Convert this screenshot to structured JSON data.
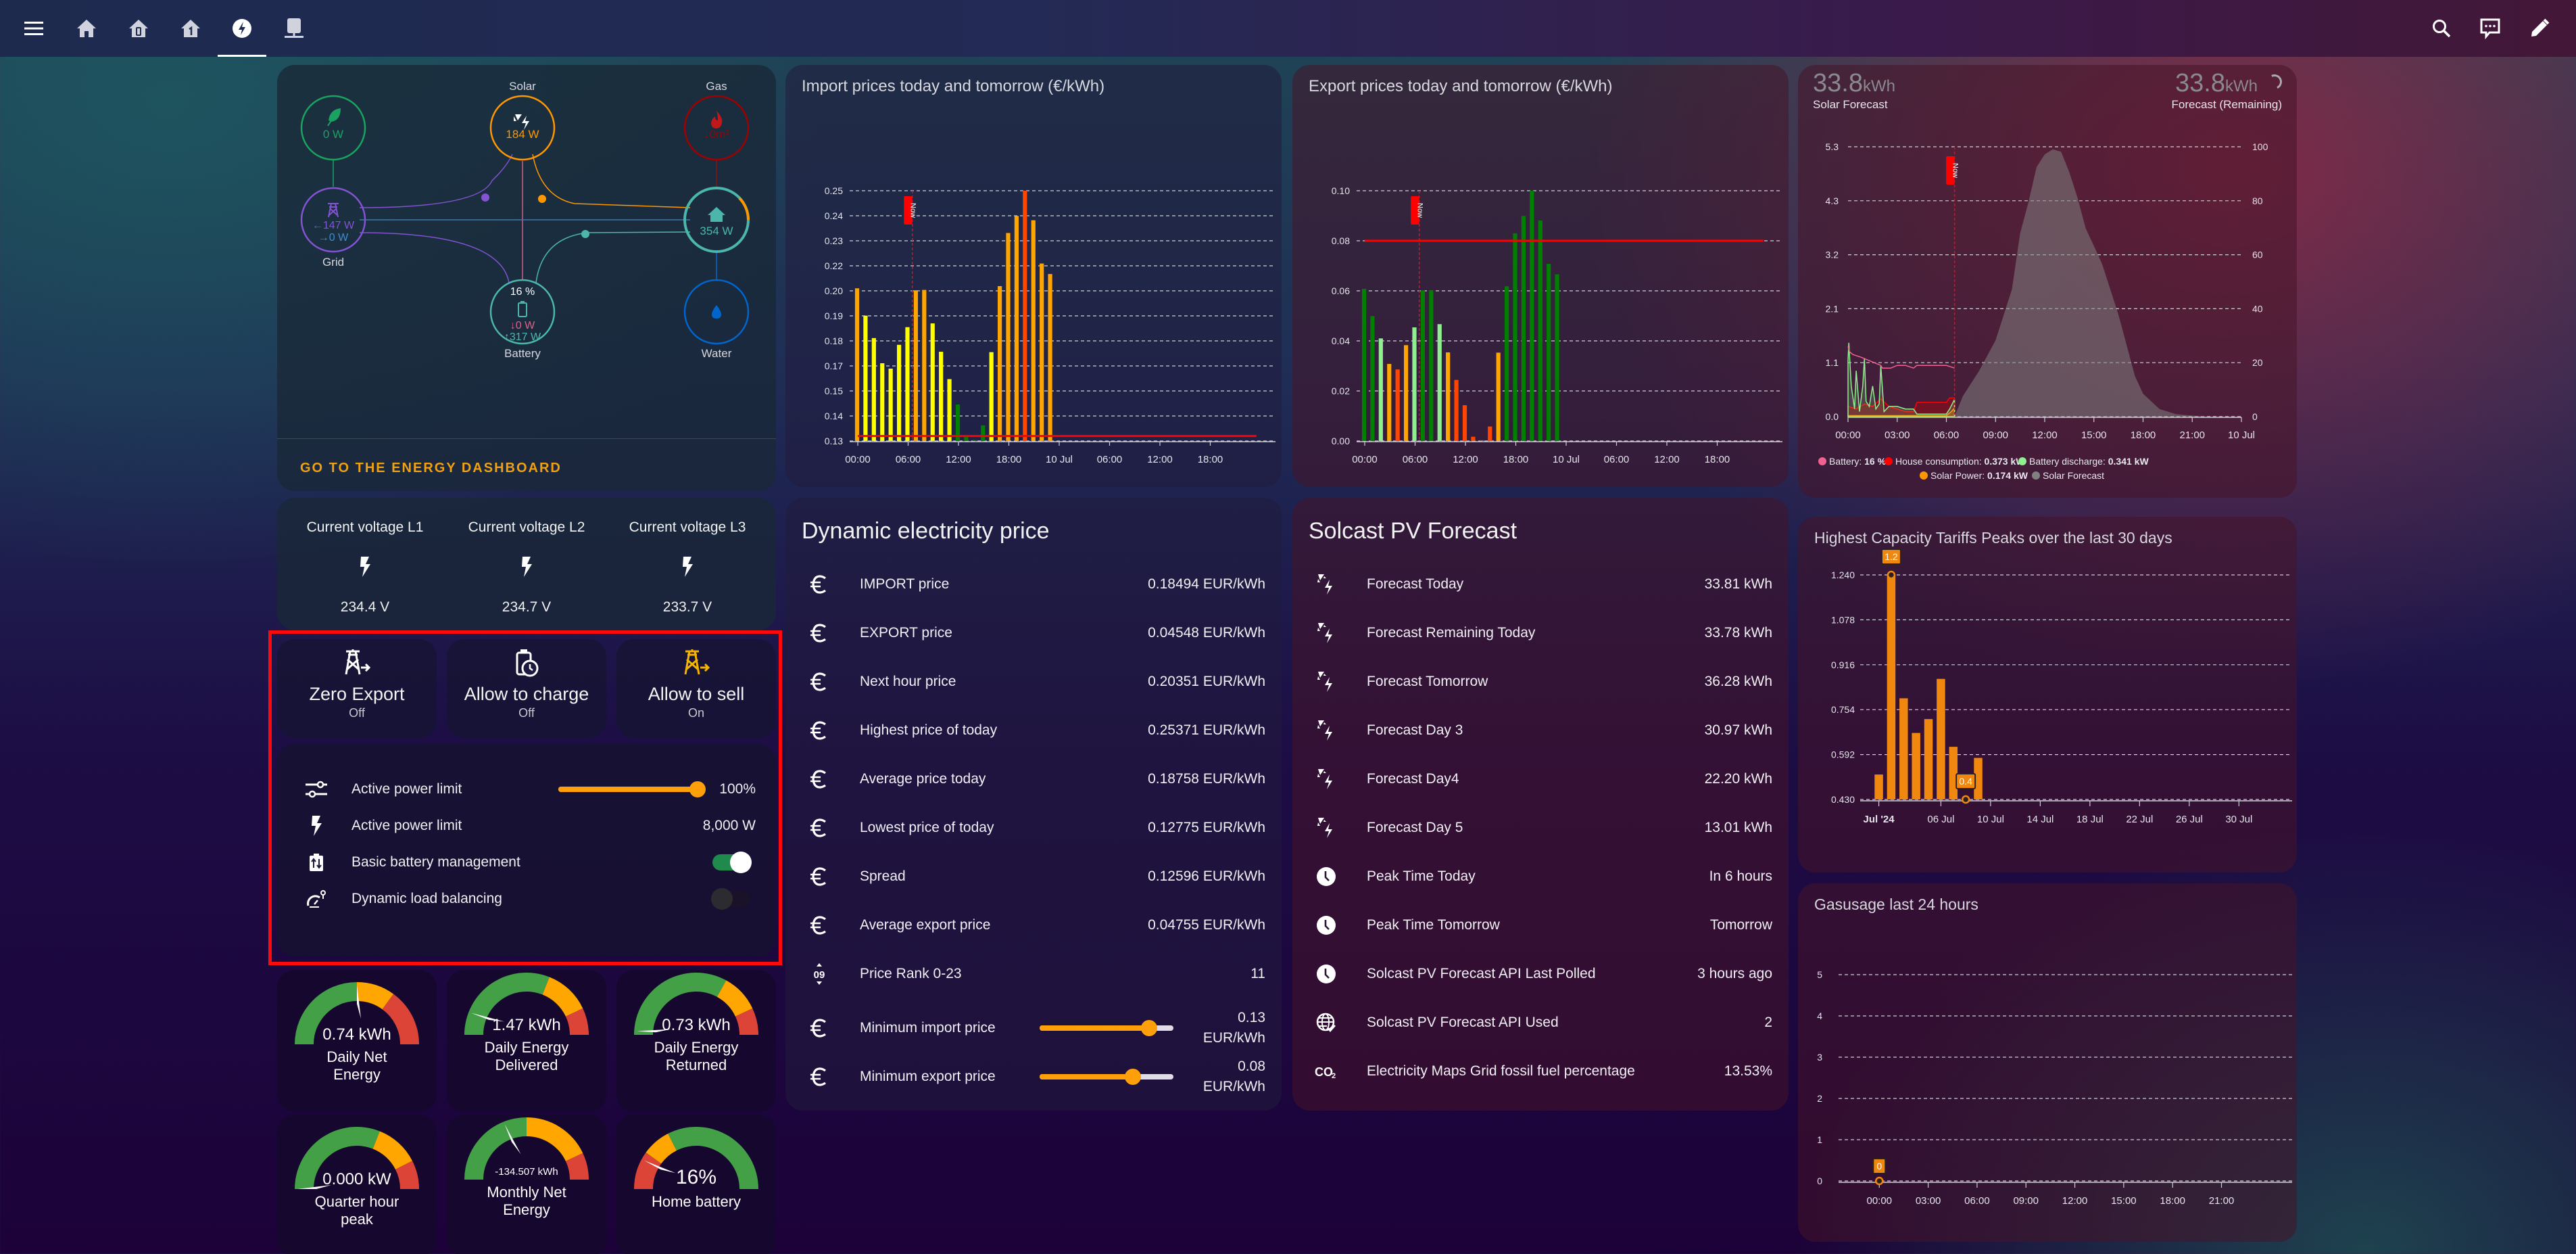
{
  "topbar": {
    "nav_icons": [
      "menu-icon",
      "home-icon",
      "home-floor-0-icon",
      "home-floor-1-icon",
      "lightning-bolt-circle-icon",
      "server-network-icon"
    ],
    "active_tab": "lightning-bolt-circle-icon",
    "right_icons": [
      "search-icon",
      "assist-chat-icon",
      "edit-pencil-icon"
    ]
  },
  "energy_flow": {
    "low_carbon": {
      "value": "0 W",
      "color": "#1aa260"
    },
    "solar": {
      "label": "Solar",
      "value": "184 W",
      "color": "#ff9800"
    },
    "gas": {
      "label": "Gas",
      "value": "↓0m³",
      "color": "#8e0e0e"
    },
    "grid": {
      "label": "Grid",
      "import": "←147 W",
      "export": "→0 W",
      "color": "#8353d1"
    },
    "home": {
      "value": "354 W",
      "color": "#4db6ac"
    },
    "battery": {
      "label": "Battery",
      "soc": "16 %",
      "in": "↓0 W",
      "out": "↑317 W",
      "color": "#4db6ac"
    },
    "water": {
      "label": "Water",
      "color": "#0066cc"
    },
    "footer_link": "GO TO THE ENERGY DASHBOARD"
  },
  "voltages": [
    {
      "label": "Current voltage L1",
      "value": "234.4 V"
    },
    {
      "label": "Current voltage L2",
      "value": "234.7 V"
    },
    {
      "label": "Current voltage L3",
      "value": "233.7 V"
    }
  ],
  "toggle_buttons": [
    {
      "name": "Zero Export",
      "state": "Off",
      "icon": "transmission-tower-export-icon",
      "color": "#ffffff"
    },
    {
      "name": "Allow to charge",
      "state": "Off",
      "icon": "battery-clock-icon",
      "color": "#ffffff"
    },
    {
      "name": "Allow to sell",
      "state": "On",
      "icon": "transmission-tower-export-icon",
      "color": "#f4b400"
    }
  ],
  "controls": {
    "active_power_limit_pct": {
      "label": "Active power limit",
      "value": "100%",
      "fraction": 1.0
    },
    "active_power_limit_w": {
      "label": "Active power limit",
      "value": "8,000 W"
    },
    "basic_battery_mgmt": {
      "label": "Basic battery management",
      "on": true
    },
    "dynamic_load_balancing": {
      "label": "Dynamic load balancing",
      "on": false
    }
  },
  "gauges": [
    {
      "value": "0.74 kWh",
      "label": "Daily Net Energy"
    },
    {
      "value": "1.47 kWh",
      "label": "Daily Energy Delivered"
    },
    {
      "value": "0.73 kWh",
      "label": "Daily Energy Returned"
    },
    {
      "value": "0.000 kW",
      "label": "Quarter hour peak"
    },
    {
      "value": "-134.507 kWh",
      "label": "Monthly Net Energy"
    },
    {
      "value": "16%",
      "label": "Home battery"
    }
  ],
  "dynamic_price": {
    "title": "Dynamic electricity price",
    "rows": [
      {
        "icon": "euro-icon",
        "label": "IMPORT price",
        "value": "0.18494 EUR/kWh"
      },
      {
        "icon": "euro-icon",
        "label": "EXPORT price",
        "value": "0.04548 EUR/kWh"
      },
      {
        "icon": "euro-icon",
        "label": "Next hour price",
        "value": "0.20351 EUR/kWh"
      },
      {
        "icon": "euro-icon",
        "label": "Highest price of today",
        "value": "0.25371 EUR/kWh"
      },
      {
        "icon": "euro-icon",
        "label": "Average price today",
        "value": "0.18758 EUR/kWh"
      },
      {
        "icon": "euro-icon",
        "label": "Lowest price of today",
        "value": "0.12775 EUR/kWh"
      },
      {
        "icon": "euro-icon",
        "label": "Spread",
        "value": "0.12596 EUR/kWh"
      },
      {
        "icon": "euro-icon",
        "label": "Average export price",
        "value": "0.04755 EUR/kWh"
      },
      {
        "icon": "numeric-icon",
        "label": "Price Rank 0-23",
        "value": "11"
      }
    ],
    "sliders": [
      {
        "label": "Minimum import price",
        "value": "0.13",
        "unit": "EUR/kWh",
        "fraction": 0.82
      },
      {
        "label": "Minimum export price",
        "value": "0.08",
        "unit": "EUR/kWh",
        "fraction": 0.7
      }
    ]
  },
  "solcast": {
    "title": "Solcast PV Forecast",
    "rows": [
      {
        "icon": "solar-power-icon",
        "label": "Forecast Today",
        "value": "33.81 kWh"
      },
      {
        "icon": "solar-power-icon",
        "label": "Forecast Remaining Today",
        "value": "33.78 kWh"
      },
      {
        "icon": "solar-power-icon",
        "label": "Forecast Tomorrow",
        "value": "36.28 kWh"
      },
      {
        "icon": "solar-power-icon",
        "label": "Forecast Day 3",
        "value": "30.97 kWh"
      },
      {
        "icon": "solar-power-icon",
        "label": "Forecast Day4",
        "value": "22.20 kWh"
      },
      {
        "icon": "solar-power-icon",
        "label": "Forecast Day 5",
        "value": "13.01 kWh"
      },
      {
        "icon": "clock-icon",
        "label": "Peak Time Today",
        "value": "In 6 hours"
      },
      {
        "icon": "clock-icon",
        "label": "Peak Time Tomorrow",
        "value": "Tomorrow"
      },
      {
        "icon": "clock-icon",
        "label": "Solcast PV Forecast API Last Polled",
        "value": "3 hours ago"
      },
      {
        "icon": "web-check-icon",
        "label": "Solcast PV Forecast API Used",
        "value": "2"
      },
      {
        "icon": "co2-icon",
        "label": "Electricity Maps Grid fossil fuel percentage",
        "value": "13.53%"
      }
    ]
  },
  "solar_header": {
    "left_value": "33.8",
    "left_unit": "kWh",
    "left_label": "Solar Forecast",
    "right_value": "33.8",
    "right_unit": "kWh",
    "right_label": "Forecast (Remaining)"
  },
  "now_label": "Now",
  "chart_data": [
    {
      "id": "import",
      "type": "bar",
      "title": "Import prices today and tomorrow (€/kWh)",
      "x_ticks": [
        "00:00",
        "06:00",
        "12:00",
        "18:00",
        "10 Jul",
        "06:00",
        "12:00",
        "18:00"
      ],
      "y_ticks": [
        "0.13",
        "0.14",
        "0.15",
        "0.17",
        "0.18",
        "0.19",
        "0.20",
        "0.22",
        "0.23",
        "0.24",
        "0.25"
      ],
      "ylim": [
        0.1275,
        0.2537
      ],
      "x_hours_range": [
        0,
        48
      ],
      "now_hour": 6.5,
      "threshold": 0.13,
      "threshold_color": "#ff0000",
      "values": [
        0.2045,
        0.1907,
        0.1794,
        0.1667,
        0.164,
        0.176,
        0.1849,
        0.2035,
        0.2037,
        0.1868,
        0.1725,
        0.1587,
        0.1459,
        0.13,
        0.128,
        0.1354,
        0.1723,
        0.2056,
        0.2324,
        0.241,
        0.2537,
        0.2388,
        0.217,
        0.2117
      ],
      "colors": [
        "#ffa500",
        "#ffff00",
        "#ffff00",
        "#ffff00",
        "#ffff00",
        "#ffff00",
        "#ffff00",
        "#ffa500",
        "#ffa500",
        "#ffff00",
        "#ffff00",
        "#ffff00",
        "#008000",
        "#008000",
        "#008000",
        "#008000",
        "#ffff00",
        "#ffa500",
        "#ffa500",
        "#ffa500",
        "#ff4500",
        "#ffa500",
        "#ffa500",
        "#ffa500"
      ]
    },
    {
      "id": "export",
      "type": "bar",
      "title": "Export prices today and tomorrow (€/kWh)",
      "x_ticks": [
        "00:00",
        "06:00",
        "12:00",
        "18:00",
        "10 Jul",
        "06:00",
        "12:00",
        "18:00"
      ],
      "y_ticks": [
        "0.00",
        "0.02",
        "0.04",
        "0.06",
        "0.08",
        "0.10"
      ],
      "ylim": [
        0,
        0.1
      ],
      "x_hours_range": [
        0,
        48
      ],
      "now_hour": 6.5,
      "threshold": 0.08,
      "threshold_color": "#ff0000",
      "values": [
        0.0608,
        0.0499,
        0.041,
        0.0308,
        0.0286,
        0.0383,
        0.0454,
        0.0602,
        0.0602,
        0.0467,
        0.0354,
        0.0244,
        0.0143,
        0.0017,
        0.0003,
        0.0058,
        0.0353,
        0.0618,
        0.083,
        0.0899,
        0.1,
        0.0881,
        0.0708,
        0.0666
      ],
      "colors": [
        "#008000",
        "#008000",
        "#90ee90",
        "#ffa500",
        "#ff4500",
        "#ffa500",
        "#90ee90",
        "#008000",
        "#008000",
        "#90ee90",
        "#ffa500",
        "#ff4500",
        "#ff4500",
        "#ff4500",
        "#ff4500",
        "#ff4500",
        "#ffa500",
        "#008000",
        "#008000",
        "#008000",
        "#008000",
        "#008000",
        "#008000",
        "#008000"
      ]
    },
    {
      "id": "solar",
      "type": "area",
      "x_ticks": [
        "00:00",
        "03:00",
        "06:00",
        "09:00",
        "12:00",
        "15:00",
        "18:00",
        "21:00",
        "10 Jul"
      ],
      "y_left_ticks": [
        "0.0",
        "1.1",
        "2.1",
        "3.2",
        "4.3",
        "5.3"
      ],
      "y_right_ticks": [
        "0",
        "20",
        "40",
        "60",
        "80",
        "100"
      ],
      "ylim_left": [
        0,
        5.3
      ],
      "ylim_right": [
        0,
        100
      ],
      "now_hour": 6.5,
      "series": [
        {
          "name": "Battery",
          "legend_value": "16 %",
          "color": "#f06292",
          "axis": "right",
          "x": [
            0,
            0.1,
            0.3,
            0.8,
            1.2,
            1.6,
            2.0,
            2.1,
            2.6,
            3.0,
            3.5,
            4.0,
            4.2,
            5.0,
            6.0,
            6.5
          ],
          "y": [
            26,
            24,
            23,
            22,
            21,
            20,
            19,
            18,
            18,
            19,
            19,
            18,
            19,
            19,
            19,
            18
          ]
        },
        {
          "name": "House consumption",
          "legend_value": "0.373 kW",
          "color": "#ff0000",
          "axis": "left",
          "x": [
            0,
            0.5,
            1.0,
            1.5,
            2.0,
            2.5,
            3.0,
            3.5,
            4.0,
            4.2,
            5.0,
            6.0,
            6.2,
            6.5
          ],
          "y": [
            0.2,
            0.15,
            0.25,
            0.2,
            0.35,
            0.2,
            0.15,
            0.1,
            0.1,
            0.28,
            0.28,
            0.28,
            0.37,
            0.37
          ]
        },
        {
          "name": "Battery discharge",
          "legend_value": "0.341 kW",
          "color": "#90ee90",
          "axis": "left",
          "x": [
            0,
            0.05,
            0.2,
            0.4,
            0.5,
            0.7,
            0.9,
            1.0,
            1.1,
            1.3,
            1.5,
            1.7,
            1.9,
            2.0,
            2.2,
            2.5,
            3.0,
            3.5,
            4.0,
            4.2,
            6.0,
            6.2,
            6.5
          ],
          "y": [
            1.1,
            1.45,
            0.6,
            0.15,
            0.9,
            0.1,
            0.6,
            1.15,
            0.3,
            0.2,
            0.6,
            0.15,
            0.25,
            1.0,
            0.1,
            0.2,
            0.2,
            0.15,
            0.15,
            0.05,
            0.05,
            0.15,
            0.34
          ]
        },
        {
          "name": "Solar Power",
          "legend_value": "0.174 kW",
          "color": "#ff9800",
          "axis": "left",
          "x": [
            0,
            6.0,
            6.3,
            6.5
          ],
          "y": [
            0.02,
            0.02,
            0.1,
            0.17
          ]
        },
        {
          "name": "Solar Forecast",
          "legend_value": "",
          "color": "#808080",
          "axis": "left",
          "x": [
            6.5,
            7,
            8,
            9,
            10,
            10.5,
            11,
            11.5,
            12,
            12.5,
            13,
            13.5,
            14,
            14.5,
            15,
            15.5,
            16,
            16.5,
            17,
            17.5,
            18,
            19,
            20,
            21,
            22,
            23,
            24
          ],
          "y": [
            0,
            0.4,
            0.9,
            1.5,
            2.5,
            3.6,
            4.2,
            4.9,
            5.15,
            5.25,
            5.2,
            4.8,
            4.3,
            3.7,
            3.35,
            3.0,
            2.5,
            2.0,
            1.4,
            0.8,
            0.45,
            0.15,
            0.05,
            0.02,
            0.0,
            0.0,
            0.0
          ]
        }
      ]
    },
    {
      "id": "capacity",
      "type": "bar",
      "title": "Highest Capacity Tariffs Peaks over the last 30 days",
      "x_ticks": [
        "Jul '24",
        "06 Jul",
        "10 Jul",
        "14 Jul",
        "18 Jul",
        "22 Jul",
        "26 Jul",
        "30 Jul"
      ],
      "y_ticks": [
        "0.430",
        "0.592",
        "0.754",
        "0.916",
        "1.078",
        "1.240"
      ],
      "ylim": [
        0.43,
        1.24
      ],
      "x_days_range": [
        -1.5,
        33.5
      ],
      "days": [
        0,
        1,
        2,
        3,
        4,
        5,
        6,
        7,
        8
      ],
      "values": [
        0.52,
        1.24,
        0.795,
        0.67,
        0.72,
        0.865,
        0.62,
        0.43,
        0.58
      ],
      "annotations": [
        {
          "day": 1,
          "label": "1.2"
        },
        {
          "day": 7,
          "label": "0.4"
        }
      ],
      "color": "#f08810"
    },
    {
      "id": "gas",
      "type": "line",
      "title": "Gasusage last 24 hours",
      "x_ticks": [
        "00:00",
        "03:00",
        "06:00",
        "09:00",
        "12:00",
        "15:00",
        "18:00",
        "21:00"
      ],
      "y_ticks": [
        "0",
        "1",
        "2",
        "3",
        "4",
        "5"
      ],
      "ylim": [
        0,
        5
      ],
      "x_hours_range": [
        -2.5,
        25.5
      ],
      "points": [
        {
          "x": 0,
          "y": 0,
          "label": "0"
        }
      ],
      "color": "#f08810"
    }
  ]
}
